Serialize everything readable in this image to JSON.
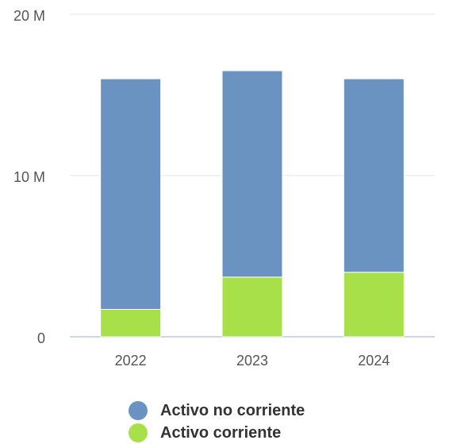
{
  "chart_data": {
    "type": "bar",
    "stacked": true,
    "categories": [
      "2022",
      "2023",
      "2024"
    ],
    "series": [
      {
        "name": "Activo corriente",
        "color": "#a8e04a",
        "values": [
          1.7,
          3.7,
          4.0
        ]
      },
      {
        "name": "Activo no corriente",
        "color": "#6b93c2",
        "values": [
          14.3,
          12.8,
          12.0
        ]
      }
    ],
    "unit": "M",
    "ylim": [
      0,
      20
    ],
    "y_ticks": [
      {
        "value": 0,
        "label": "0"
      },
      {
        "value": 10,
        "label": "10 M"
      },
      {
        "value": 20,
        "label": "20 M"
      }
    ],
    "grid": true,
    "legend_placement": "bottom-center",
    "legend_order": [
      "Activo no corriente",
      "Activo corriente"
    ]
  }
}
